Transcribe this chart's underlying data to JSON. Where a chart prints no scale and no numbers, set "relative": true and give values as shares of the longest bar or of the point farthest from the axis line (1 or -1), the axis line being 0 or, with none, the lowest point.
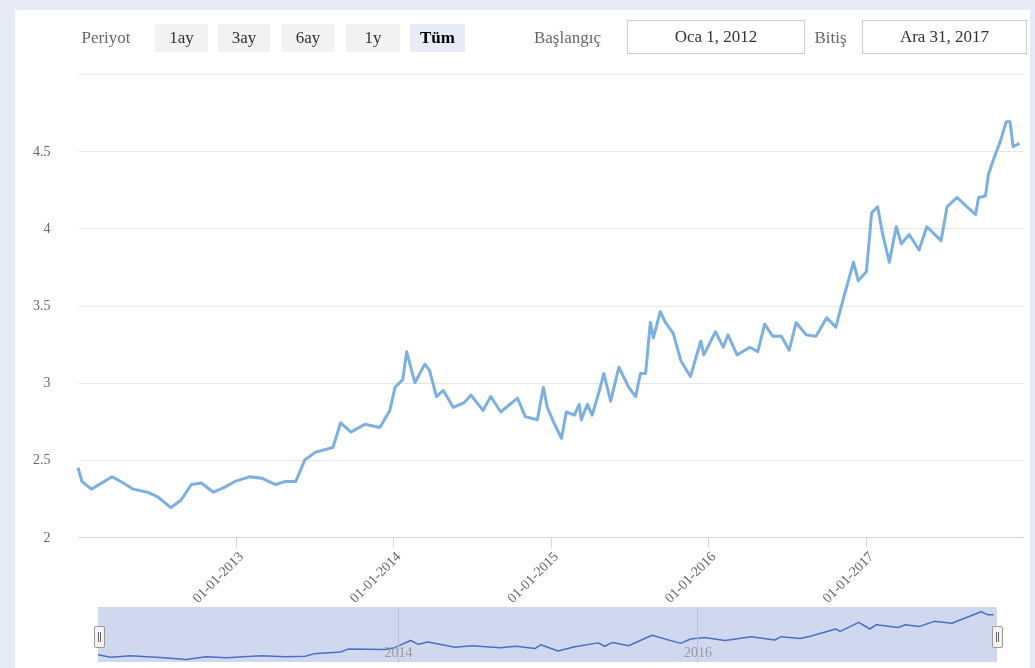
{
  "chart_data": [
    {
      "type": "line",
      "color": "#7cb0e0",
      "grid": "y",
      "annotations": [
        "Periyot",
        "1ay",
        "3ay",
        "6ay",
        "1y",
        "Tüm",
        "Başlangıç",
        "Oca 1, 2012",
        "Bitiş",
        "Ara 31, 2017"
      ],
      "xlim": [
        "2012-01-01",
        "2017-12-31"
      ],
      "xticks": [
        {
          "value": "2013-01-01",
          "label": "01-01-2013"
        },
        {
          "value": "2014-01-01",
          "label": "01-01-2014"
        },
        {
          "value": "2015-01-01",
          "label": "01-01-2015"
        },
        {
          "value": "2016-01-01",
          "label": "01-01-2016"
        },
        {
          "value": "2017-01-01",
          "label": "01-01-2017"
        }
      ],
      "ylim": [
        2,
        5
      ],
      "yticks": [
        2,
        2.5,
        3,
        3.5,
        4,
        4.5,
        {
          "value": 5,
          "label": null
        }
      ],
      "x": [
        "2012-01-01",
        "2012-01-10",
        "2012-02-01",
        "2012-02-25",
        "2012-03-20",
        "2012-04-15",
        "2012-05-08",
        "2012-06-10",
        "2012-07-04",
        "2012-08-03",
        "2012-08-27",
        "2012-09-20",
        "2012-10-13",
        "2012-11-10",
        "2012-12-04",
        "2012-12-30",
        "2013-02-01",
        "2013-03-03",
        "2013-04-03",
        "2013-04-26",
        "2013-05-20",
        "2013-06-10",
        "2013-07-05",
        "2013-08-14",
        "2013-09-01",
        "2013-09-25",
        "2013-10-27",
        "2013-12-01",
        "2013-12-24",
        "2014-01-05",
        "2014-01-23",
        "2014-02-01",
        "2014-02-20",
        "2014-03-15",
        "2014-03-26",
        "2014-04-11",
        "2014-04-27",
        "2014-05-20",
        "2014-06-14",
        "2014-06-30",
        "2014-07-28",
        "2014-08-15",
        "2014-09-07",
        "2014-10-16",
        "2014-11-03",
        "2014-12-01",
        "2014-12-15",
        "2014-12-24",
        "2015-01-10",
        "2015-01-26",
        "2015-02-06",
        "2015-02-25",
        "2015-03-08",
        "2015-03-13",
        "2015-03-27",
        "2015-04-07",
        "2015-04-23",
        "2015-05-04",
        "2015-05-20",
        "2015-06-08",
        "2015-07-01",
        "2015-07-17",
        "2015-07-28",
        "2015-08-09",
        "2015-08-20",
        "2015-08-27",
        "2015-09-12",
        "2015-09-24",
        "2015-10-12",
        "2015-10-30",
        "2015-11-21",
        "2015-12-15",
        "2015-12-22",
        "2016-01-18",
        "2016-02-05",
        "2016-02-16",
        "2016-03-08",
        "2016-04-07",
        "2016-04-25",
        "2016-05-11",
        "2016-05-30",
        "2016-06-19",
        "2016-07-07",
        "2016-07-23",
        "2016-08-15",
        "2016-09-07",
        "2016-10-02",
        "2016-10-23",
        "2016-11-10",
        "2016-12-03",
        "2016-12-14",
        "2017-01-02",
        "2017-01-14",
        "2017-01-28",
        "2017-02-08",
        "2017-02-24",
        "2017-03-12",
        "2017-03-24",
        "2017-04-11",
        "2017-05-04",
        "2017-05-22",
        "2017-06-24",
        "2017-07-08",
        "2017-07-31",
        "2017-08-23",
        "2017-09-12",
        "2017-09-19",
        "2017-10-05",
        "2017-10-12",
        "2017-10-24",
        "2017-11-08",
        "2017-11-22",
        "2017-12-01",
        "2017-12-08",
        "2017-12-23"
      ],
      "values": [
        2.45,
        2.36,
        2.31,
        2.35,
        2.39,
        2.35,
        2.31,
        2.29,
        2.26,
        2.19,
        2.24,
        2.34,
        2.35,
        2.29,
        2.32,
        2.36,
        2.39,
        2.38,
        2.34,
        2.36,
        2.36,
        2.5,
        2.55,
        2.58,
        2.74,
        2.68,
        2.73,
        2.71,
        2.82,
        2.97,
        3.02,
        3.2,
        3.0,
        3.12,
        3.08,
        2.91,
        2.95,
        2.84,
        2.87,
        2.92,
        2.82,
        2.91,
        2.81,
        2.9,
        2.78,
        2.76,
        2.97,
        2.84,
        2.73,
        2.64,
        2.81,
        2.79,
        2.86,
        2.76,
        2.86,
        2.79,
        2.94,
        3.06,
        2.88,
        3.1,
        2.97,
        2.91,
        3.06,
        3.06,
        3.39,
        3.29,
        3.46,
        3.39,
        3.32,
        3.14,
        3.04,
        3.27,
        3.18,
        3.33,
        3.23,
        3.31,
        3.18,
        3.23,
        3.2,
        3.38,
        3.3,
        3.3,
        3.21,
        3.39,
        3.31,
        3.3,
        3.42,
        3.36,
        3.55,
        3.78,
        3.66,
        3.72,
        4.1,
        4.14,
        3.97,
        3.78,
        4.01,
        3.9,
        3.96,
        3.86,
        4.01,
        3.92,
        4.14,
        4.2,
        4.14,
        4.09,
        4.2,
        4.21,
        4.35,
        4.45,
        4.56,
        4.69,
        4.69,
        4.53,
        4.55
      ]
    },
    {
      "type": "line",
      "color": "#4a6fc7",
      "grid": "x",
      "relative": true,
      "xlim": [
        "2012-01-01",
        "2017-12-31"
      ],
      "xticks": [
        {
          "value": "2014-01-01",
          "label": "2014"
        },
        {
          "value": "2016-01-01",
          "label": "2016"
        }
      ],
      "bands": [
        {
          "axis": "x",
          "from": "2012-01-01",
          "to": "2017-12-31",
          "color": "#cfd8ee"
        }
      ],
      "x": [
        "2012-01-01",
        "2012-02-01",
        "2012-03-20",
        "2012-06-10",
        "2012-08-03",
        "2012-09-20",
        "2012-11-10",
        "2013-02-01",
        "2013-04-03",
        "2013-05-20",
        "2013-06-10",
        "2013-08-14",
        "2013-09-01",
        "2013-12-01",
        "2013-12-24",
        "2014-02-01",
        "2014-02-20",
        "2014-03-15",
        "2014-05-20",
        "2014-06-30",
        "2014-09-07",
        "2014-10-16",
        "2014-12-01",
        "2014-12-15",
        "2015-01-26",
        "2015-03-08",
        "2015-05-04",
        "2015-05-20",
        "2015-06-08",
        "2015-07-17",
        "2015-09-12",
        "2015-11-21",
        "2015-12-15",
        "2016-01-18",
        "2016-03-08",
        "2016-05-11",
        "2016-07-07",
        "2016-07-23",
        "2016-09-07",
        "2016-10-02",
        "2016-12-03",
        "2016-12-14",
        "2017-01-28",
        "2017-02-24",
        "2017-03-12",
        "2017-05-04",
        "2017-05-22",
        "2017-06-24",
        "2017-07-31",
        "2017-09-12",
        "2017-10-24",
        "2017-11-22",
        "2017-12-08",
        "2017-12-23"
      ],
      "values": [
        0.1,
        0.05,
        0.08,
        0.04,
        0.0,
        0.06,
        0.04,
        0.08,
        0.06,
        0.07,
        0.12,
        0.16,
        0.22,
        0.21,
        0.25,
        0.4,
        0.32,
        0.37,
        0.26,
        0.29,
        0.25,
        0.28,
        0.23,
        0.31,
        0.18,
        0.27,
        0.35,
        0.28,
        0.36,
        0.29,
        0.51,
        0.34,
        0.43,
        0.46,
        0.4,
        0.48,
        0.41,
        0.48,
        0.44,
        0.49,
        0.64,
        0.59,
        0.78,
        0.64,
        0.73,
        0.67,
        0.73,
        0.69,
        0.8,
        0.76,
        0.9,
        1.0,
        0.94,
        0.94
      ]
    }
  ]
}
